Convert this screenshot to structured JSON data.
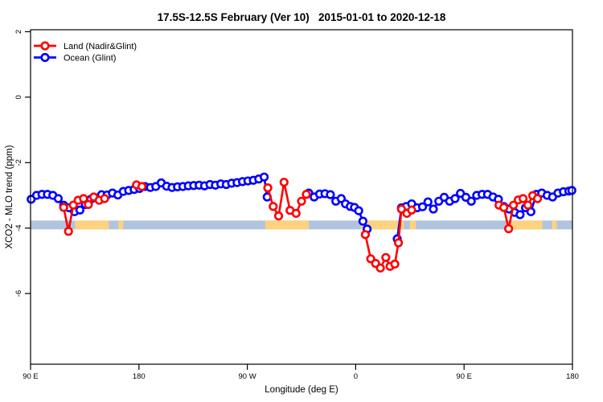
{
  "header": {
    "title": "17.5S-12.5S February (Ver 10)   2015-01-01 to 2020-12-18"
  },
  "chart_data": {
    "type": "line",
    "title": "17.5S-12.5S February (Ver 10)   2015-01-01 to 2020-12-18",
    "xlabel": "Longitude (deg E)",
    "ylabel": "XCO2 - MLO trend (ppm)",
    "xlim": [
      90,
      540
    ],
    "ylim": [
      -8.16,
      2.06
    ],
    "grid": false,
    "legend_position": "top-left",
    "xticks": [
      {
        "lon": 90,
        "label": "90 E"
      },
      {
        "lon": 180,
        "label": "180"
      },
      {
        "lon": 270,
        "label": "90 W"
      },
      {
        "lon": 360,
        "label": "0"
      },
      {
        "lon": 450,
        "label": "90 E"
      },
      {
        "lon": 540,
        "label": "180"
      }
    ],
    "yticks": [
      {
        "value": 2,
        "label": "2"
      },
      {
        "value": 0,
        "label": "0"
      },
      {
        "value": -2,
        "label": "-2"
      },
      {
        "value": -4,
        "label": "-4"
      },
      {
        "value": -6,
        "label": "-6"
      }
    ],
    "surface_band": {
      "description": "horizontal strip marking value range, light blue = ocean, orange = land longitudes",
      "value_top": -3.77,
      "value_bottom": -4.04,
      "ocean_color": "#b0c4de",
      "land_color": "#ffd27f",
      "land_segments_lon": [
        [
          127,
          155
        ],
        [
          163,
          167
        ],
        [
          285,
          321
        ],
        [
          364,
          400
        ],
        [
          405,
          410
        ],
        [
          487,
          515
        ],
        [
          523,
          527
        ]
      ]
    },
    "series": [
      {
        "name": "Ocean (Glint)",
        "color": "#0000ff",
        "marker": "open-circle",
        "gap_threshold": 9,
        "points": [
          [
            90.5,
            -3.12
          ],
          [
            95,
            -3.0
          ],
          [
            99.5,
            -2.97
          ],
          [
            104,
            -2.97
          ],
          [
            108.5,
            -3.0
          ],
          [
            113,
            -3.1
          ],
          [
            117.5,
            -3.3
          ],
          [
            122,
            -3.38
          ],
          [
            126.5,
            -3.5
          ],
          [
            131,
            -3.45
          ],
          [
            135.5,
            -3.28
          ],
          [
            140,
            -3.12
          ],
          [
            144.5,
            -3.08
          ],
          [
            149,
            -2.98
          ],
          [
            153.5,
            -2.99
          ],
          [
            158,
            -2.93
          ],
          [
            162.5,
            -2.99
          ],
          [
            167,
            -2.88
          ],
          [
            171.5,
            -2.85
          ],
          [
            176,
            -2.82
          ],
          [
            180.5,
            -2.79
          ],
          [
            185,
            -2.73
          ],
          [
            189.5,
            -2.76
          ],
          [
            194,
            -2.73
          ],
          [
            198.5,
            -2.62
          ],
          [
            203,
            -2.72
          ],
          [
            207.5,
            -2.76
          ],
          [
            212,
            -2.74
          ],
          [
            216.5,
            -2.73
          ],
          [
            221,
            -2.71
          ],
          [
            225.5,
            -2.7
          ],
          [
            230,
            -2.69
          ],
          [
            234.5,
            -2.71
          ],
          [
            239,
            -2.67
          ],
          [
            243.5,
            -2.69
          ],
          [
            248,
            -2.65
          ],
          [
            252.5,
            -2.67
          ],
          [
            257,
            -2.63
          ],
          [
            261.5,
            -2.61
          ],
          [
            266,
            -2.58
          ],
          [
            270.5,
            -2.56
          ],
          [
            275,
            -2.54
          ],
          [
            279.5,
            -2.5
          ],
          [
            284,
            -2.44
          ],
          [
            286.5,
            -3.05
          ],
          [
            321,
            -2.93
          ],
          [
            325.5,
            -3.05
          ],
          [
            330,
            -2.96
          ],
          [
            334.5,
            -2.95
          ],
          [
            339,
            -2.98
          ],
          [
            343.5,
            -3.18
          ],
          [
            348,
            -3.1
          ],
          [
            351.5,
            -3.26
          ],
          [
            355.5,
            -3.34
          ],
          [
            359,
            -3.37
          ],
          [
            362.5,
            -3.47
          ],
          [
            366,
            -3.79
          ],
          [
            369.5,
            -4.03
          ],
          [
            394.5,
            -4.33
          ],
          [
            398,
            -3.38
          ],
          [
            402,
            -3.34
          ],
          [
            406.5,
            -3.26
          ],
          [
            411,
            -3.38
          ],
          [
            415.5,
            -3.35
          ],
          [
            420,
            -3.2
          ],
          [
            424.5,
            -3.42
          ],
          [
            429,
            -3.18
          ],
          [
            433.5,
            -3.06
          ],
          [
            438,
            -3.18
          ],
          [
            442.5,
            -3.1
          ],
          [
            447,
            -2.94
          ],
          [
            451.5,
            -3.06
          ],
          [
            456,
            -3.18
          ],
          [
            460.5,
            -3.0
          ],
          [
            465,
            -2.97
          ],
          [
            469.5,
            -2.97
          ],
          [
            474,
            -3.05
          ],
          [
            478.5,
            -3.12
          ],
          [
            483,
            -3.34
          ],
          [
            487.5,
            -3.42
          ],
          [
            492,
            -3.52
          ],
          [
            496.5,
            -3.59
          ],
          [
            501,
            -3.38
          ],
          [
            505.5,
            -3.5
          ],
          [
            510,
            -2.97
          ],
          [
            514.5,
            -2.93
          ],
          [
            519,
            -3.0
          ],
          [
            523.5,
            -3.05
          ],
          [
            528,
            -2.93
          ],
          [
            532.5,
            -2.89
          ],
          [
            537,
            -2.87
          ],
          [
            539.5,
            -2.85
          ]
        ]
      },
      {
        "name": "Land (Nadir&Glint)",
        "color": "#ff0000",
        "marker": "open-circle",
        "gap_threshold": 9,
        "points": [
          [
            117.5,
            -3.37
          ],
          [
            121.5,
            -4.1
          ],
          [
            125.5,
            -3.3
          ],
          [
            129.5,
            -3.15
          ],
          [
            134,
            -3.1
          ],
          [
            138,
            -3.28
          ],
          [
            142.5,
            -3.05
          ],
          [
            147,
            -3.15
          ],
          [
            151.5,
            -3.1
          ],
          [
            178,
            -2.68
          ],
          [
            182.5,
            -2.73
          ],
          [
            287,
            -2.77
          ],
          [
            291.5,
            -3.34
          ],
          [
            296,
            -3.63
          ],
          [
            300.5,
            -2.6
          ],
          [
            305.5,
            -3.46
          ],
          [
            310.5,
            -3.55
          ],
          [
            315,
            -3.18
          ],
          [
            319,
            -2.97
          ],
          [
            368,
            -4.2
          ],
          [
            372.5,
            -4.94
          ],
          [
            376.5,
            -5.08
          ],
          [
            380.5,
            -5.22
          ],
          [
            385,
            -4.9
          ],
          [
            388.5,
            -5.17
          ],
          [
            392.5,
            -5.1
          ],
          [
            395.5,
            -4.45
          ],
          [
            398,
            -3.42
          ],
          [
            402.5,
            -3.55
          ],
          [
            406.5,
            -3.45
          ],
          [
            479,
            -3.3
          ],
          [
            483,
            -3.37
          ],
          [
            487,
            -4.02
          ],
          [
            491,
            -3.3
          ],
          [
            495,
            -3.14
          ],
          [
            499,
            -3.1
          ],
          [
            503,
            -3.3
          ],
          [
            507,
            -3.01
          ],
          [
            511,
            -3.1
          ]
        ]
      }
    ],
    "legend_order": [
      "Land (Nadir&Glint)",
      "Ocean (Glint)"
    ]
  }
}
